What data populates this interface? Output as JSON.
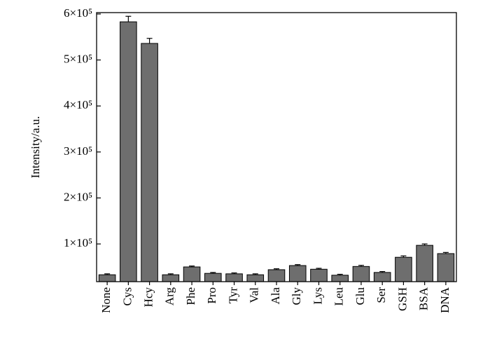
{
  "chart_data": {
    "type": "bar",
    "y_label": "Intensity/a.u.",
    "categories": [
      "None",
      "Cys",
      "Hcy",
      "Arg",
      "Phe",
      "Pro",
      "Tyr",
      "Val",
      "Ala",
      "Gly",
      "Lys",
      "Leu",
      "Glu",
      "Ser",
      "GSH",
      "BSA",
      "DNA"
    ],
    "values": [
      33000,
      583000,
      536000,
      33000,
      50000,
      36000,
      35000,
      33000,
      44000,
      53000,
      45000,
      32000,
      51000,
      38000,
      71000,
      97000,
      79000
    ],
    "errors": [
      2000,
      12000,
      11000,
      2000,
      2000,
      2000,
      2000,
      2000,
      2000,
      2000,
      2000,
      2000,
      2500,
      2000,
      3000,
      3000,
      2500
    ],
    "color": "#6e6e6e",
    "ylim": [
      18000,
      603000
    ],
    "yticks": [
      {
        "value": 100000,
        "label": "1×10⁵"
      },
      {
        "value": 200000,
        "label": "2×10⁵"
      },
      {
        "value": 300000,
        "label": "3×10⁵"
      },
      {
        "value": 400000,
        "label": "4×10⁵"
      },
      {
        "value": 500000,
        "label": "5×10⁵"
      },
      {
        "value": 600000,
        "label": "6×10⁵"
      }
    ]
  }
}
